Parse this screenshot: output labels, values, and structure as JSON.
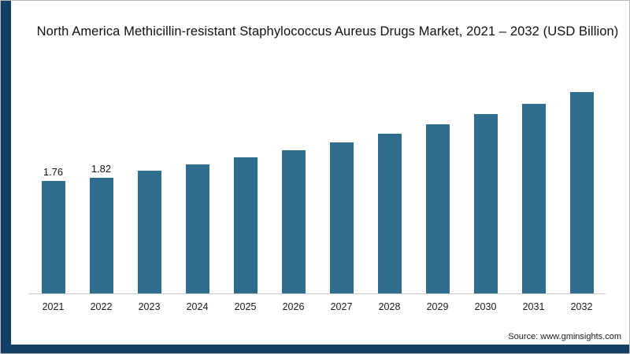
{
  "chart": {
    "title": "North America Methicillin-resistant Staphylococcus Aureus Drugs Market, 2021 – 2032 (USD Billion)"
  },
  "source": {
    "label": "Source: www.gminsights.com"
  },
  "colors": {
    "bar": "#2e6d8d",
    "accent_frame": "#123f63",
    "axis_line": "#c9c9c9"
  },
  "chart_data": {
    "type": "bar",
    "title": "North America Methicillin-resistant Staphylococcus Aureus Drugs Market, 2021 – 2032 (USD Billion)",
    "categories": [
      "2021",
      "2022",
      "2023",
      "2024",
      "2025",
      "2026",
      "2027",
      "2028",
      "2029",
      "2030",
      "2031",
      "2032"
    ],
    "values": [
      1.76,
      1.82,
      1.92,
      2.02,
      2.13,
      2.25,
      2.37,
      2.51,
      2.66,
      2.81,
      2.98,
      3.16
    ],
    "data_labels": [
      "1.76",
      "1.82",
      "",
      "",
      "",
      "",
      "",
      "",
      "",
      "",
      "",
      ""
    ],
    "xlabel": "",
    "ylabel": "",
    "units": "USD Billion",
    "ylim": [
      0,
      3.5
    ],
    "grid": false,
    "legend": "none"
  }
}
